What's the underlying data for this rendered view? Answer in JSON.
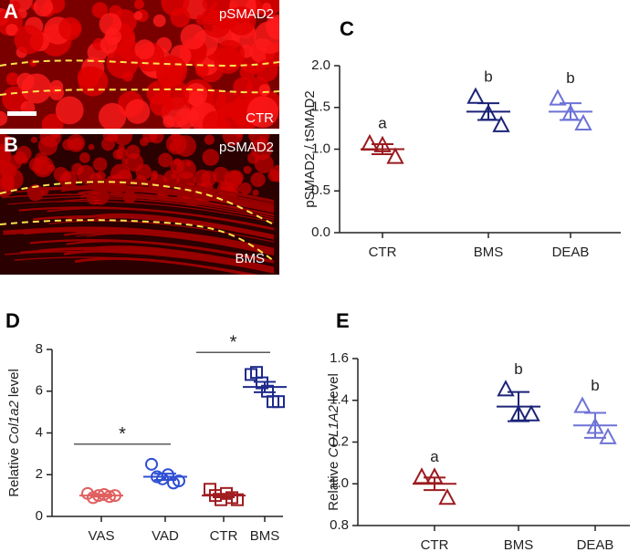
{
  "images": [
    {
      "letter": "A",
      "stain": "pSMAD2",
      "condition": "CTR"
    },
    {
      "letter": "B",
      "stain": "pSMAD2",
      "condition": "BMS"
    }
  ],
  "chart_data": [
    {
      "type": "dotplot",
      "panel": "C",
      "ylabel": "pSMAD2 / tSMAD2",
      "categories": [
        "CTR",
        "BMS",
        "DEAB"
      ],
      "colors": [
        "#9b1b1f",
        "#1b2378",
        "#6d72d6"
      ],
      "markers": [
        "triangle",
        "triangle",
        "triangle"
      ],
      "points": [
        [
          1.06,
          1.04,
          0.9
        ],
        [
          1.62,
          1.42,
          1.28
        ],
        [
          1.6,
          1.42,
          1.3
        ]
      ],
      "means": [
        1.0,
        1.45,
        1.45
      ],
      "sems": [
        0.06,
        0.1,
        0.1
      ],
      "letters": [
        "a",
        "b",
        "b"
      ],
      "ylim": [
        0,
        2
      ],
      "yticks": [
        {
          "value": 0,
          "label": "0.0"
        },
        0.5,
        {
          "value": 1,
          "label": "1.0"
        },
        1.5,
        {
          "value": 2,
          "label": "2.0"
        }
      ]
    },
    {
      "type": "dotplot",
      "panel": "D",
      "ylabel": {
        "before": "Relative",
        "gene": "Col1a2",
        "after": "level"
      },
      "categories": [
        "VAS",
        "VAD",
        "CTR",
        "BMS"
      ],
      "colors": [
        "#e0605f",
        "#2f4fd3",
        "#a01d20",
        "#1f2a8c"
      ],
      "markers": [
        "circle",
        "circle",
        "square",
        "square"
      ],
      "points": [
        [
          1.1,
          0.9,
          1.0,
          1.05,
          0.95,
          1.0
        ],
        [
          2.5,
          1.9,
          1.8,
          2.0,
          1.6,
          1.7
        ],
        [
          1.3,
          1.0,
          0.8,
          1.1,
          0.9,
          0.8
        ],
        [
          6.8,
          6.9,
          6.4,
          6.0,
          5.5,
          5.5
        ]
      ],
      "means": [
        1.0,
        1.9,
        1.0,
        6.2
      ],
      "sems": [
        0.05,
        0.15,
        0.08,
        0.25
      ],
      "significance": [
        "*",
        "*"
      ],
      "ylim": [
        0,
        8
      ],
      "yticks": [
        0,
        2,
        4,
        6,
        8
      ]
    },
    {
      "type": "dotplot",
      "panel": "E",
      "ylabel": {
        "before": "Relative",
        "gene": "COL1A2",
        "after": "level"
      },
      "categories": [
        "CTR",
        "BMS",
        "DEAB"
      ],
      "colors": [
        "#9b1b1f",
        "#1b2378",
        "#6d72d6"
      ],
      "markers": [
        "triangle",
        "triangle",
        "triangle"
      ],
      "points": [
        [
          1.03,
          1.03,
          0.93
        ],
        [
          1.45,
          1.33,
          1.33
        ],
        [
          1.37,
          1.27,
          1.22
        ]
      ],
      "means": [
        1.0,
        1.37,
        1.28
      ],
      "sems": [
        0.03,
        0.07,
        0.06
      ],
      "letters": [
        "a",
        "b",
        "b"
      ],
      "ylim": [
        0.8,
        1.6
      ],
      "yticks": [
        0.8,
        {
          "value": 1,
          "label": "1.0"
        },
        1.2,
        1.4,
        1.6
      ]
    }
  ]
}
